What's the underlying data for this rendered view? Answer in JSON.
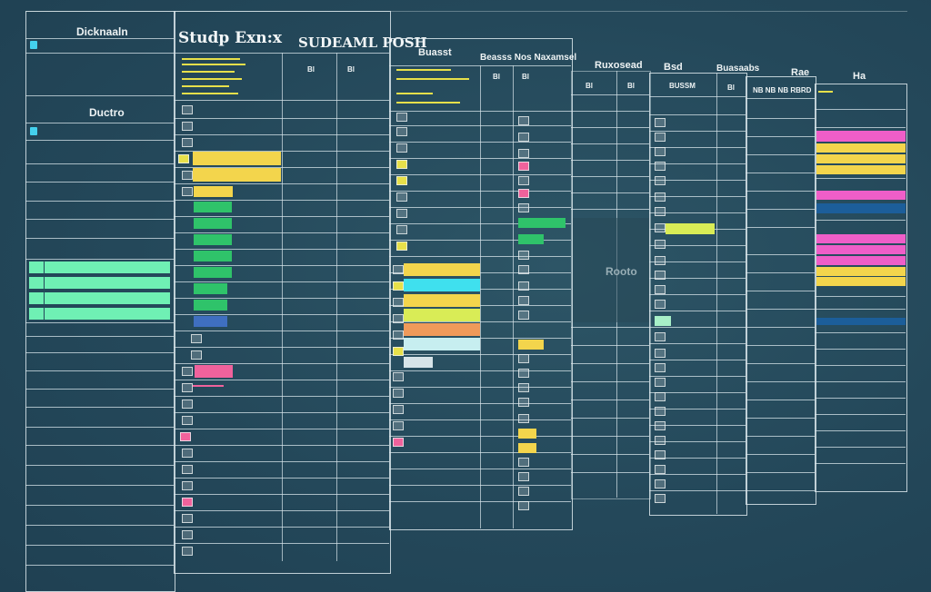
{
  "headers": {
    "col1": "Dicknaaln",
    "col2": "Studp Exn:x",
    "col3": "SUDEAML POSH",
    "col4": "Buasst",
    "col5": "Beasss Nos Naxamsel",
    "col6": "Ruxosead",
    "col7": "Bsd",
    "col8": "Buasaabs",
    "col9": "Rae",
    "col10": "Ha"
  },
  "sub_labels": {
    "left_section": "Ductro",
    "mid_label": "Rooto",
    "col7_label": "BUSSM",
    "col4_label": "Bl",
    "col8_label": "NB NB NB RBRD"
  },
  "colors": {
    "background": "#24485a",
    "grid": "#d7e4e9",
    "yellow": "#f3d54c",
    "green": "#2fc36a",
    "mint": "#6ff0b4",
    "blue": "#3f6fc0",
    "pink": "#f0629c",
    "cyan": "#3fe0ee",
    "orange": "#ef9a5a",
    "magenta": "#ef5ec8",
    "navy": "#1c5e9a",
    "lime": "#d9ec56",
    "light_cyan": "#c7eef0"
  },
  "icons": [
    "table-cell-glyph-icon",
    "status-chip-icon"
  ]
}
